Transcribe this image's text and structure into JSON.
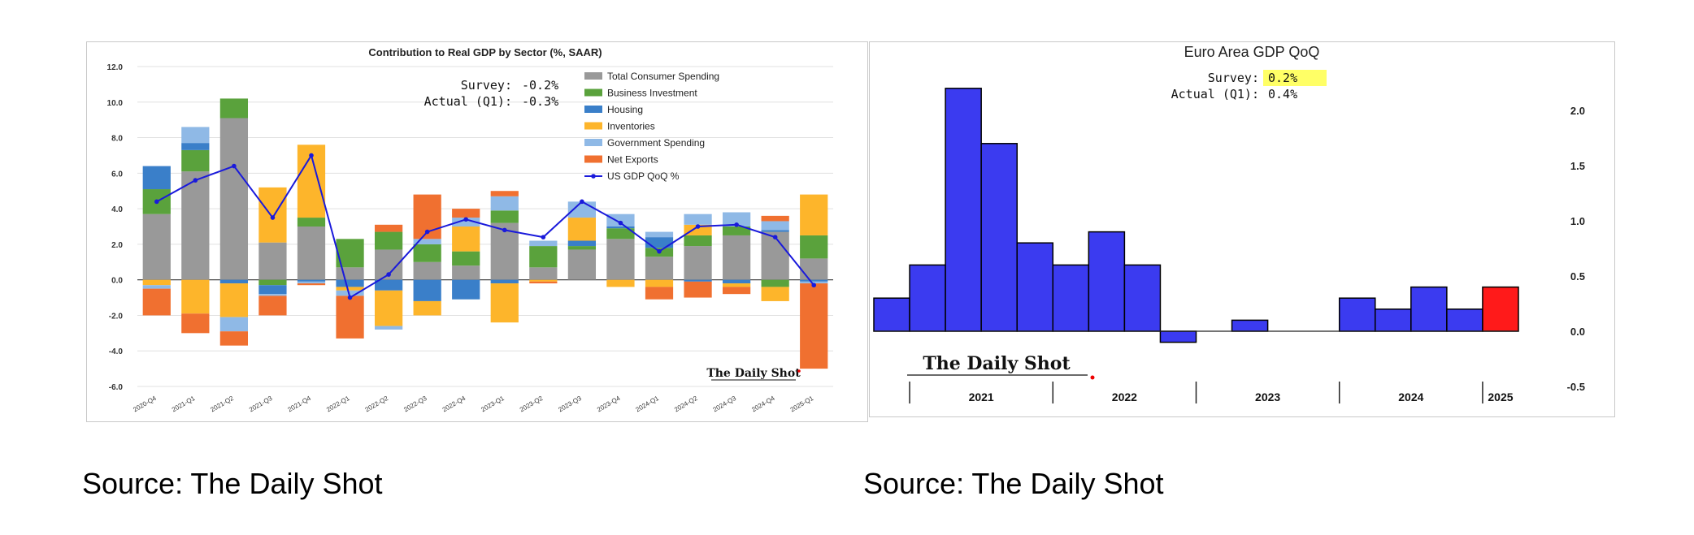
{
  "chart_data": [
    {
      "type": "bar",
      "stacked": true,
      "title": "Contribution to Real GDP by Sector (%, SAAR)",
      "xlabel": "",
      "ylabel": "",
      "ylim": [
        -6.0,
        12.0
      ],
      "ytick_labels": [
        "12.0",
        "10.0",
        "8.0",
        "6.0",
        "4.0",
        "2.0",
        "0.0",
        "-2.0",
        "-4.0",
        "-6.0"
      ],
      "yticks": [
        12,
        10,
        8,
        6,
        4,
        2,
        0,
        -2,
        -4,
        -6
      ],
      "grid": true,
      "legend_position": "top-right",
      "categories": [
        "2020-Q4",
        "2021-Q1",
        "2021-Q2",
        "2021-Q3",
        "2021-Q4",
        "2022-Q1",
        "2022-Q2",
        "2022-Q3",
        "2022-Q4",
        "2023-Q1",
        "2023-Q2",
        "2023-Q3",
        "2023-Q4",
        "2024-Q1",
        "2024-Q2",
        "2024-Q3",
        "2024-Q4",
        "2025-Q1"
      ],
      "series": [
        {
          "name": "Total Consumer Spending",
          "color": "#999999",
          "values": [
            3.7,
            6.1,
            9.1,
            2.1,
            3.0,
            0.7,
            1.7,
            1.0,
            0.8,
            3.2,
            0.7,
            1.7,
            2.3,
            1.3,
            1.9,
            2.5,
            2.7,
            1.2
          ]
        },
        {
          "name": "Business Investment",
          "color": "#5aa23c",
          "values": [
            1.4,
            1.2,
            1.1,
            -0.3,
            0.5,
            1.6,
            1.0,
            1.0,
            0.8,
            0.7,
            1.2,
            0.2,
            0.6,
            0.5,
            0.6,
            0.5,
            -0.4,
            1.3
          ]
        },
        {
          "name": "Housing",
          "color": "#3a7fc9",
          "values": [
            1.3,
            0.4,
            -0.2,
            -0.5,
            -0.1,
            -0.4,
            -0.6,
            -1.2,
            -1.1,
            -0.2,
            0.0,
            0.3,
            0.1,
            0.6,
            -0.1,
            -0.2,
            0.1,
            -0.1
          ]
        },
        {
          "name": "Inventories",
          "color": "#fdb52b",
          "values": [
            -0.3,
            -1.9,
            -1.9,
            3.1,
            4.1,
            -0.2,
            -2.0,
            -0.8,
            1.4,
            -2.2,
            -0.1,
            1.3,
            -0.4,
            -0.4,
            0.6,
            -0.2,
            -0.8,
            2.3
          ]
        },
        {
          "name": "Government Spending",
          "color": "#8fb9e6",
          "values": [
            -0.2,
            0.9,
            -0.8,
            -0.1,
            -0.1,
            -0.3,
            -0.2,
            0.3,
            0.5,
            0.8,
            0.3,
            0.9,
            0.7,
            0.3,
            0.6,
            0.8,
            0.5,
            -0.1
          ]
        },
        {
          "name": "Net Exports",
          "color": "#f07030",
          "values": [
            -1.5,
            -1.1,
            -0.8,
            -1.1,
            -0.1,
            -2.4,
            0.4,
            2.5,
            0.5,
            0.3,
            -0.1,
            0.0,
            0.0,
            -0.7,
            -0.9,
            -0.4,
            0.3,
            -4.8
          ]
        }
      ],
      "line_series": {
        "name": "US GDP QoQ %",
        "color": "#1a1adb",
        "values": [
          4.4,
          5.6,
          6.4,
          3.5,
          7.0,
          -1.0,
          0.3,
          2.7,
          3.4,
          2.8,
          2.4,
          4.4,
          3.2,
          1.6,
          3.0,
          3.1,
          2.4,
          -0.3
        ]
      },
      "annotations": {
        "survey_label": "Survey:",
        "survey_value": "-0.2%",
        "actual_label": "Actual (Q1):",
        "actual_value": "-0.3%"
      },
      "watermark": "The Daily Shot"
    },
    {
      "type": "bar",
      "title": "Euro Area GDP QoQ",
      "xlabel": "",
      "ylabel": "",
      "ylim": [
        -0.5,
        2.3
      ],
      "ytick_labels": [
        "2.0",
        "1.5",
        "1.0",
        "0.5",
        "0.0",
        "-0.5"
      ],
      "yticks": [
        2.0,
        1.5,
        1.0,
        0.5,
        0.0,
        -0.5
      ],
      "grid": false,
      "year_groups": [
        {
          "label": "2021",
          "start": 1,
          "count": 4
        },
        {
          "label": "2022",
          "start": 5,
          "count": 4
        },
        {
          "label": "2023",
          "start": 9,
          "count": 4
        },
        {
          "label": "2024",
          "start": 13,
          "count": 4
        },
        {
          "label": "2025",
          "start": 17,
          "count": 1
        }
      ],
      "categories": [
        "2020-Q4",
        "2021-Q1",
        "2021-Q2",
        "2021-Q3",
        "2021-Q4",
        "2022-Q1",
        "2022-Q2",
        "2022-Q3",
        "2022-Q4",
        "2023-Q1",
        "2023-Q2",
        "2023-Q3",
        "2023-Q4",
        "2024-Q1",
        "2024-Q2",
        "2024-Q3",
        "2024-Q4",
        "2025-Q1"
      ],
      "values": [
        0.3,
        0.6,
        2.2,
        1.7,
        0.8,
        0.6,
        0.9,
        0.6,
        -0.1,
        0.0,
        0.1,
        0.0,
        0.0,
        0.3,
        0.2,
        0.4,
        0.2,
        0.4
      ],
      "bar_color": "#3b3bf0",
      "highlight_color": "#ff1a1a",
      "highlight_index": 17,
      "annotations": {
        "survey_label": "Survey:",
        "survey_value": "0.2%",
        "actual_label": "Actual (Q1):",
        "actual_value": "0.4%"
      },
      "watermark": "The Daily Shot"
    }
  ],
  "captions": {
    "left": "Source: The Daily Shot",
    "right": "Source: The Daily Shot"
  }
}
